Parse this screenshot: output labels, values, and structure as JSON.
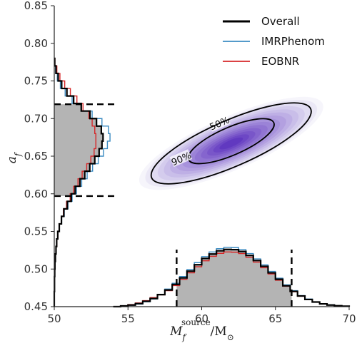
{
  "chart_data": {
    "type": "corner",
    "x_axis": {
      "label_main": "M",
      "label_sub": "f",
      "label_sup": "source",
      "label_unit": "/M",
      "label_unit_symbol": "⊙",
      "range": [
        50,
        70
      ],
      "ticks": [
        50,
        55,
        60,
        65,
        70
      ],
      "tick_labels": [
        "50",
        "55",
        "60",
        "65",
        "70"
      ]
    },
    "y_axis": {
      "label_main": "a",
      "label_sub": "f",
      "range": [
        0.45,
        0.85
      ],
      "ticks": [
        0.45,
        0.5,
        0.55,
        0.6,
        0.65,
        0.7,
        0.75,
        0.8,
        0.85
      ],
      "tick_labels": [
        "0.45",
        "0.50",
        "0.55",
        "0.60",
        "0.65",
        "0.70",
        "0.75",
        "0.80",
        "0.85"
      ]
    },
    "legend": {
      "position": "top-right",
      "entries": [
        {
          "name": "Overall",
          "color": "#000000"
        },
        {
          "name": "IMRPhenom",
          "color": "#3b8bc2"
        },
        {
          "name": "EOBNR",
          "color": "#d62728"
        }
      ]
    },
    "mass_credible_interval": [
      58.3,
      66.1
    ],
    "spin_credible_interval": [
      0.597,
      0.719
    ],
    "joint_peak": {
      "mass": 62,
      "spin": 0.67
    },
    "contours": [
      {
        "level": "50%",
        "center": [
          62.0,
          0.67
        ],
        "half_width": 3.0,
        "half_height": 0.044,
        "label_at": [
          61.2,
          0.694
        ]
      },
      {
        "level": "90%",
        "center": [
          62.0,
          0.667
        ],
        "half_width": 5.6,
        "half_height": 0.073,
        "label_at": [
          58.6,
          0.647
        ]
      }
    ],
    "mass_histogram": {
      "bin_edges": [
        54,
        54.5,
        55,
        55.5,
        56,
        56.5,
        57,
        57.5,
        58,
        58.5,
        59,
        59.5,
        60,
        60.5,
        61,
        61.5,
        62,
        62.5,
        63,
        63.5,
        64,
        64.5,
        65,
        65.5,
        66,
        66.5,
        67,
        67.5,
        68,
        68.5,
        69,
        69.5,
        70
      ],
      "overall": [
        0.0,
        0.3,
        0.7,
        1.3,
        2.3,
        3.5,
        5.2,
        7.2,
        9.6,
        12.4,
        15.3,
        18.1,
        20.8,
        22.7,
        24.1,
        24.7,
        24.6,
        23.8,
        22.1,
        19.9,
        17.4,
        14.6,
        11.8,
        9.0,
        6.6,
        4.6,
        3.1,
        2.0,
        1.2,
        0.7,
        0.4,
        0.2
      ],
      "imrphenom": [
        0.0,
        0.2,
        0.6,
        1.1,
        2.1,
        3.3,
        5.3,
        7.6,
        10.1,
        13.0,
        16.0,
        19.0,
        21.6,
        23.6,
        25.0,
        25.6,
        25.5,
        24.6,
        22.9,
        20.6,
        18.0,
        15.2,
        12.3,
        9.4,
        6.9,
        4.8,
        3.3,
        2.1,
        1.3,
        0.8,
        0.4,
        0.2
      ],
      "eobnr": [
        0.0,
        0.4,
        0.9,
        1.6,
        2.6,
        3.9,
        5.1,
        6.9,
        9.1,
        11.8,
        14.6,
        17.2,
        19.8,
        21.7,
        23.0,
        23.6,
        23.5,
        22.9,
        21.3,
        19.2,
        16.8,
        14.1,
        11.4,
        8.8,
        6.4,
        4.5,
        3.0,
        1.9,
        1.2,
        0.7,
        0.4,
        0.2
      ],
      "max_value": 34
    },
    "spin_histogram": {
      "bin_edges": [
        0.45,
        0.46,
        0.47,
        0.48,
        0.49,
        0.5,
        0.51,
        0.52,
        0.53,
        0.54,
        0.55,
        0.56,
        0.57,
        0.58,
        0.59,
        0.6,
        0.61,
        0.62,
        0.63,
        0.64,
        0.65,
        0.66,
        0.67,
        0.68,
        0.69,
        0.7,
        0.71,
        0.72,
        0.73,
        0.74,
        0.75,
        0.76,
        0.77,
        0.78
      ],
      "overall": [
        0.0,
        0.0,
        0.1,
        0.1,
        0.2,
        0.3,
        0.5,
        0.8,
        1.1,
        1.6,
        2.3,
        3.3,
        4.4,
        6.0,
        7.8,
        9.6,
        11.8,
        14.0,
        16.3,
        18.6,
        20.6,
        21.9,
        22.4,
        21.6,
        19.4,
        16.4,
        12.4,
        8.9,
        5.8,
        3.4,
        1.8,
        0.8,
        0.2
      ],
      "imrphenom": [
        0.0,
        0.0,
        0.1,
        0.1,
        0.2,
        0.3,
        0.5,
        0.8,
        1.1,
        1.6,
        2.4,
        3.4,
        4.6,
        6.3,
        8.2,
        10.2,
        12.6,
        15.1,
        17.6,
        20.2,
        22.6,
        24.4,
        25.6,
        24.9,
        21.9,
        17.4,
        12.3,
        8.2,
        5.0,
        2.8,
        1.4,
        0.6,
        0.2
      ],
      "eobnr": [
        0.0,
        0.0,
        0.1,
        0.1,
        0.2,
        0.3,
        0.5,
        0.8,
        1.2,
        1.7,
        2.3,
        3.2,
        4.2,
        5.6,
        7.3,
        8.9,
        10.9,
        12.8,
        14.9,
        16.8,
        18.3,
        19.1,
        19.1,
        18.6,
        17.4,
        15.9,
        13.2,
        10.4,
        7.4,
        4.8,
        2.6,
        1.2,
        0.3
      ],
      "max_value": 34
    }
  },
  "labels": {
    "contour_50": "50%",
    "contour_90": "90%"
  }
}
